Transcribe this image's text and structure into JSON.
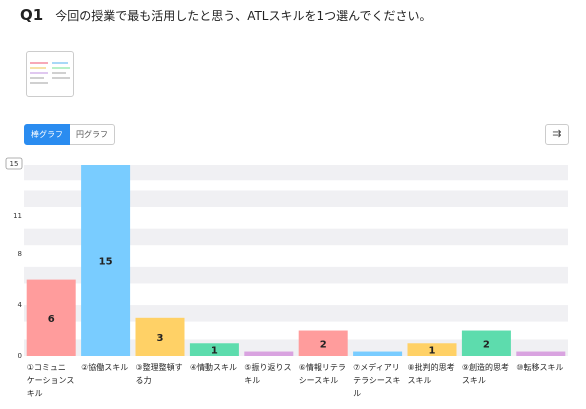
{
  "question": {
    "number": "Q1",
    "text": "今回の授業で最も活用したと思う、ATLスキルを1つ選んでください。"
  },
  "tabs": [
    "棒グラフ",
    "円グラフ"
  ],
  "chart_data": {
    "type": "bar",
    "categories": [
      [
        "①コミュニ",
        "ケーションス",
        "キル"
      ],
      [
        "②協働スキル"
      ],
      [
        "③整理整頓す",
        "る力"
      ],
      [
        "④情動スキル"
      ],
      [
        "⑤振り返りス",
        "キル"
      ],
      [
        "⑥情報リテラ",
        "シースキル"
      ],
      [
        "⑦メディアリ",
        "テラシースキ",
        "ル"
      ],
      [
        "⑧批判的思考",
        "スキル"
      ],
      [
        "⑨創造的思考",
        "スキル"
      ],
      [
        "⑩転移スキル"
      ]
    ],
    "values": [
      6,
      15,
      3,
      1,
      0,
      2,
      0,
      1,
      2,
      0
    ],
    "value_labels": [
      "6",
      "15",
      "3",
      "1",
      "",
      "2",
      "",
      "1",
      "2",
      ""
    ],
    "colors": [
      "#ff9c9c",
      "#79ccff",
      "#ffd166",
      "#5ddcad",
      "#d9a3e0",
      "#ff9c9c",
      "#79ccff",
      "#ffd166",
      "#5ddcad",
      "#d9a3e0"
    ],
    "yticks": [
      0,
      4,
      8,
      11,
      15
    ],
    "ymax_label": "15",
    "ylim": [
      0,
      15
    ],
    "grid": true
  }
}
